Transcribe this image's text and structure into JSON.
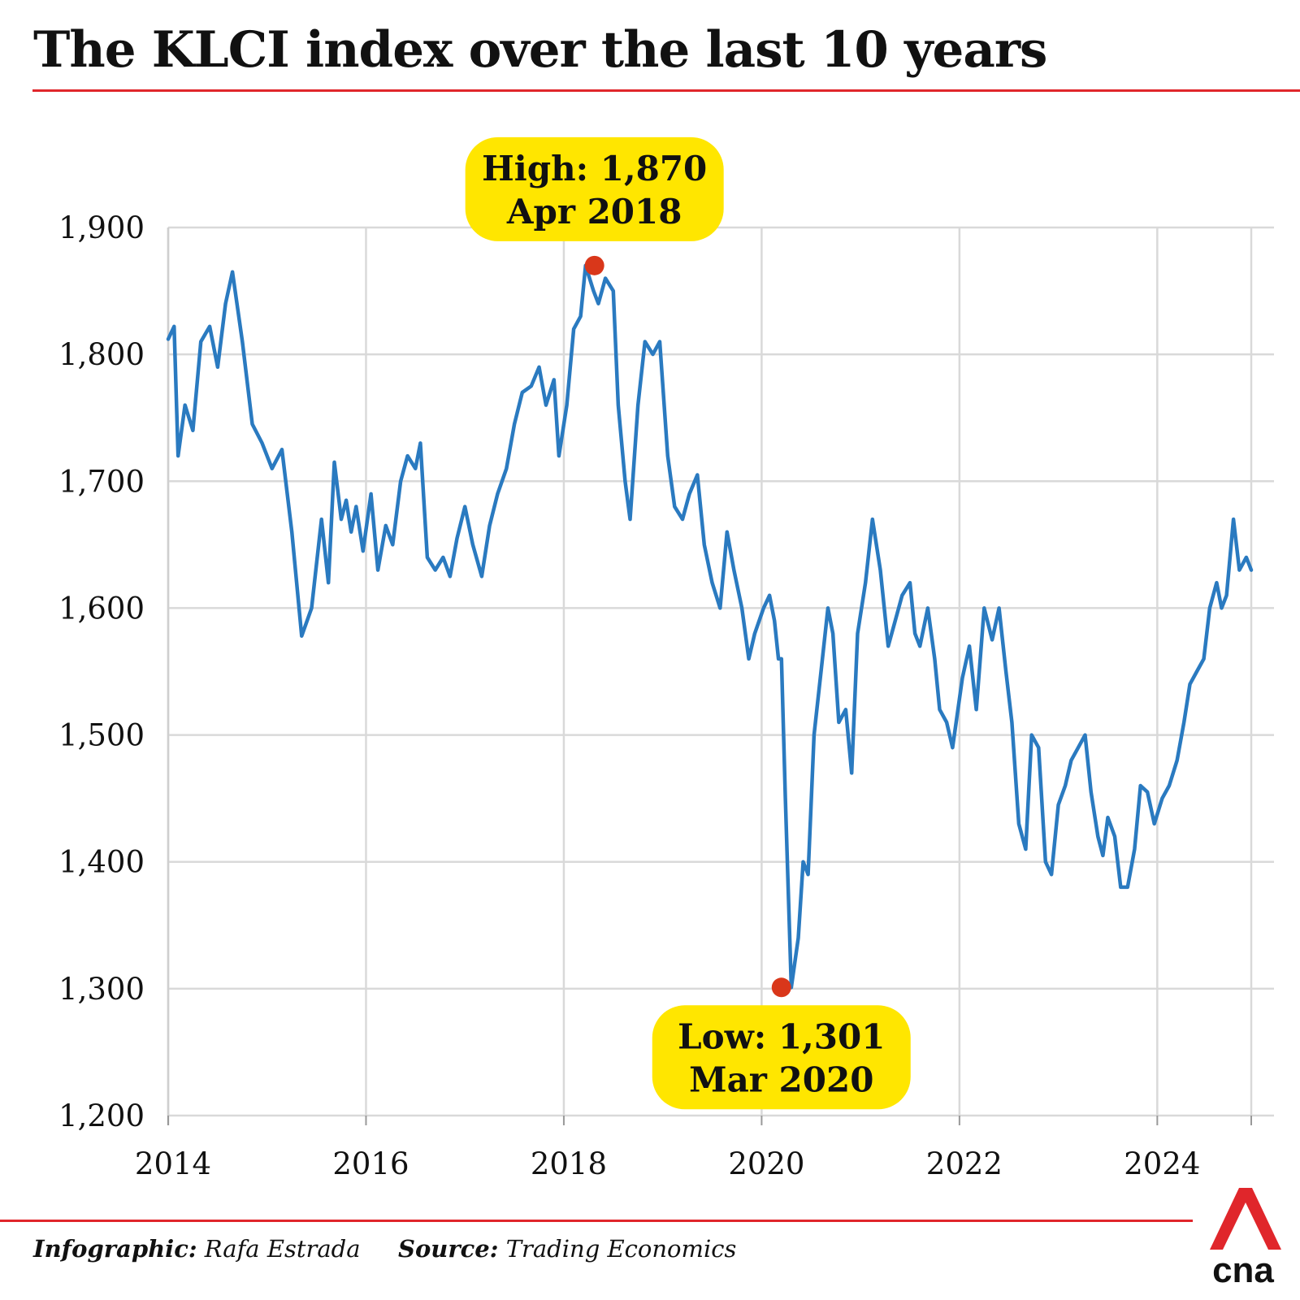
{
  "header": {
    "title": "The KLCI index over the last 10 years"
  },
  "chart_data": {
    "type": "line",
    "title": "The KLCI index over the last 10 years",
    "xlabel": "",
    "ylabel": "",
    "xlim": [
      2014.0,
      2024.95
    ],
    "ylim": [
      1200,
      1900
    ],
    "x_ticks": [
      "2014",
      "2016",
      "2018",
      "2020",
      "2022",
      "2024"
    ],
    "y_ticks": [
      "1,200",
      "1,300",
      "1,400",
      "1,500",
      "1,600",
      "1,700",
      "1,800",
      "1,900"
    ],
    "grid": true,
    "series": [
      {
        "name": "",
        "color": "#2a7ac0",
        "x": [
          2014.0,
          2014.06,
          2014.1,
          2014.17,
          2014.25,
          2014.33,
          2014.42,
          2014.5,
          2014.58,
          2014.65,
          2014.75,
          2014.85,
          2014.95,
          2015.05,
          2015.15,
          2015.25,
          2015.35,
          2015.45,
          2015.55,
          2015.62,
          2015.68,
          2015.75,
          2015.8,
          2015.85,
          2015.9,
          2015.97,
          2016.05,
          2016.12,
          2016.2,
          2016.27,
          2016.35,
          2016.42,
          2016.5,
          2016.55,
          2016.62,
          2016.7,
          2016.78,
          2016.85,
          2016.92,
          2017.0,
          2017.08,
          2017.17,
          2017.25,
          2017.33,
          2017.42,
          2017.5,
          2017.58,
          2017.67,
          2017.75,
          2017.82,
          2017.9,
          2017.95,
          2018.03,
          2018.1,
          2018.17,
          2018.22,
          2018.3,
          2018.35,
          2018.42,
          2018.5,
          2018.55,
          2018.62,
          2018.67,
          2018.75,
          2018.82,
          2018.9,
          2018.97,
          2019.05,
          2019.12,
          2019.2,
          2019.27,
          2019.35,
          2019.42,
          2019.5,
          2019.58,
          2019.65,
          2019.72,
          2019.8,
          2019.87,
          2019.93,
          2020.02,
          2020.08,
          2020.13,
          2020.17,
          2020.2,
          2020.24,
          2020.3,
          2020.37,
          2020.42,
          2020.47,
          2020.53,
          2020.6,
          2020.67,
          2020.72,
          2020.78,
          2020.85,
          2020.91,
          2020.97,
          2021.05,
          2021.12,
          2021.2,
          2021.28,
          2021.35,
          2021.42,
          2021.5,
          2021.55,
          2021.6,
          2021.68,
          2021.75,
          2021.8,
          2021.87,
          2021.93,
          2022.03,
          2022.1,
          2022.17,
          2022.25,
          2022.33,
          2022.4,
          2022.47,
          2022.53,
          2022.6,
          2022.67,
          2022.73,
          2022.8,
          2022.87,
          2022.93,
          2023.0,
          2023.07,
          2023.13,
          2023.2,
          2023.27,
          2023.33,
          2023.4,
          2023.45,
          2023.5,
          2023.57,
          2023.63,
          2023.7,
          2023.77,
          2023.83,
          2023.9,
          2023.97,
          2024.05,
          2024.12,
          2024.2,
          2024.27,
          2024.33,
          2024.4,
          2024.47,
          2024.53,
          2024.6,
          2024.65,
          2024.7,
          2024.77,
          2024.83,
          2024.9,
          2024.95
        ],
        "values": [
          1812,
          1822,
          1720,
          1760,
          1740,
          1810,
          1822,
          1790,
          1840,
          1865,
          1810,
          1745,
          1730,
          1710,
          1725,
          1660,
          1578,
          1600,
          1670,
          1620,
          1715,
          1670,
          1685,
          1660,
          1680,
          1645,
          1690,
          1630,
          1665,
          1650,
          1700,
          1720,
          1710,
          1730,
          1640,
          1630,
          1640,
          1625,
          1655,
          1680,
          1650,
          1625,
          1665,
          1690,
          1710,
          1745,
          1770,
          1775,
          1790,
          1760,
          1780,
          1720,
          1760,
          1820,
          1830,
          1870,
          1850,
          1840,
          1860,
          1850,
          1760,
          1700,
          1670,
          1760,
          1810,
          1800,
          1810,
          1720,
          1680,
          1670,
          1690,
          1705,
          1650,
          1620,
          1600,
          1660,
          1630,
          1600,
          1560,
          1580,
          1600,
          1610,
          1590,
          1560,
          1560,
          1450,
          1301,
          1340,
          1400,
          1390,
          1500,
          1550,
          1600,
          1580,
          1510,
          1520,
          1470,
          1580,
          1620,
          1670,
          1630,
          1570,
          1590,
          1610,
          1620,
          1580,
          1570,
          1600,
          1560,
          1520,
          1510,
          1490,
          1545,
          1570,
          1520,
          1600,
          1575,
          1600,
          1550,
          1510,
          1430,
          1410,
          1500,
          1490,
          1400,
          1390,
          1445,
          1460,
          1480,
          1490,
          1500,
          1455,
          1420,
          1405,
          1435,
          1420,
          1380,
          1380,
          1410,
          1460,
          1455,
          1430,
          1450,
          1460,
          1480,
          1510,
          1540,
          1550,
          1560,
          1600,
          1620,
          1600,
          1610,
          1670,
          1630,
          1640,
          1630
        ]
      }
    ],
    "annotations": [
      {
        "label_line1": "High: 1,870",
        "label_line2": "Apr 2018",
        "x": 2018.31,
        "y": 1870,
        "marker_color": "#d9371a",
        "box_color": "#ffe600"
      },
      {
        "label_line1": "Low: 1,301",
        "label_line2": "Mar 2020",
        "x": 2020.2,
        "y": 1301,
        "marker_color": "#d9371a",
        "box_color": "#ffe600"
      }
    ]
  },
  "footer": {
    "credit_label": "Infographic:",
    "credit_value": "Rafa Estrada",
    "source_label": "Source:",
    "source_value": "Trading Economics"
  },
  "logo": {
    "text": "cna",
    "color": "#e0262b"
  }
}
